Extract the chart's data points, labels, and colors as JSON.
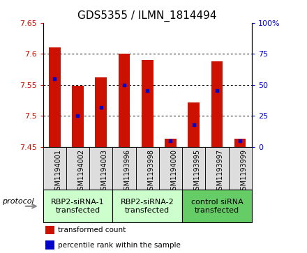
{
  "title": "GDS5355 / ILMN_1814494",
  "samples": [
    "GSM1194001",
    "GSM1194002",
    "GSM1194003",
    "GSM1193996",
    "GSM1193998",
    "GSM1194000",
    "GSM1193995",
    "GSM1193997",
    "GSM1193999"
  ],
  "transformed_count": [
    7.61,
    7.548,
    7.562,
    7.6,
    7.59,
    7.463,
    7.522,
    7.588,
    7.463
  ],
  "percentile_rank": [
    55,
    25,
    32,
    50,
    45,
    5,
    18,
    45,
    5
  ],
  "ylim_left": [
    7.45,
    7.65
  ],
  "ylim_right": [
    0,
    100
  ],
  "yticks_left": [
    7.45,
    7.5,
    7.55,
    7.6,
    7.65
  ],
  "yticks_right": [
    0,
    25,
    50,
    75,
    100
  ],
  "bar_color": "#cc1100",
  "dot_color": "#0000cc",
  "grid_color": "#000000",
  "groups": [
    {
      "label": "RBP2-siRNA-1\ntransfected",
      "start": 0,
      "end": 3,
      "color": "#ccffcc"
    },
    {
      "label": "RBP2-siRNA-2\ntransfected",
      "start": 3,
      "end": 6,
      "color": "#ccffcc"
    },
    {
      "label": "control siRNA\ntransfected",
      "start": 6,
      "end": 9,
      "color": "#66cc66"
    }
  ],
  "protocol_label": "protocol",
  "legend_entries": [
    {
      "label": "transformed count",
      "color": "#cc1100"
    },
    {
      "label": "percentile rank within the sample",
      "color": "#0000cc"
    }
  ],
  "bar_width": 0.5,
  "bar_bottom": 7.45,
  "title_fontsize": 11,
  "tick_fontsize": 8,
  "sample_fontsize": 7,
  "group_fontsize": 8
}
